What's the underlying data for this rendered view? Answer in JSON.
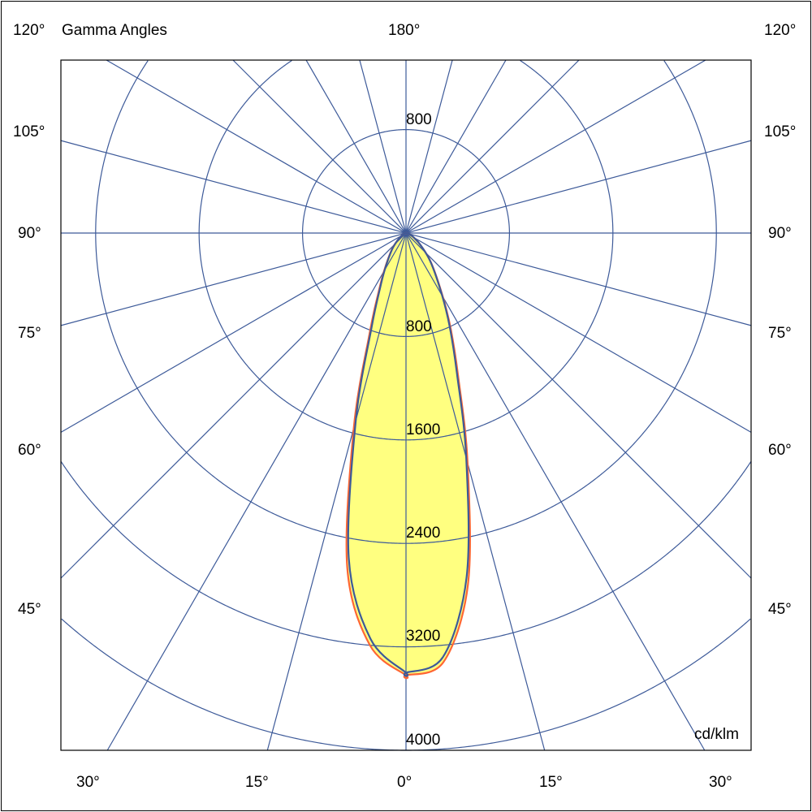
{
  "chart_data": {
    "type": "polar",
    "title": "Gamma Angles",
    "unit": "cd/klm",
    "top_label": "180°",
    "side_labels": [
      "120°",
      "105°",
      "90°",
      "75°",
      "60°",
      "45°"
    ],
    "bottom_labels": [
      "30°",
      "15°",
      "0°",
      "15°",
      "30°"
    ],
    "ring_values": [
      800,
      1600,
      2400,
      3200,
      4000
    ],
    "ring_labels": {
      "top": "800",
      "bottom": [
        "800",
        "1600",
        "2400",
        "3200",
        "4000"
      ]
    },
    "rmax": 4000,
    "radial_step_deg": 15,
    "grid": true,
    "gamma": [
      0,
      5,
      10,
      15,
      20,
      25,
      30,
      40,
      50,
      60,
      70,
      80,
      90
    ],
    "series": [
      {
        "color": "#ff6633",
        "right": [
          3420,
          3330,
          2760,
          1840,
          1180,
          820,
          570,
          305,
          150,
          70,
          30,
          10,
          0
        ],
        "left": [
          3420,
          3200,
          2620,
          1560,
          820,
          500,
          340,
          175,
          82,
          36,
          12,
          3,
          0
        ]
      },
      {
        "color": "#3d5a99",
        "right": [
          3400,
          3290,
          2700,
          1800,
          1150,
          800,
          560,
          300,
          150,
          70,
          30,
          10,
          0
        ],
        "left": [
          3400,
          3150,
          2550,
          1500,
          780,
          480,
          330,
          170,
          80,
          35,
          12,
          3,
          0
        ]
      }
    ],
    "fill_color": "#ffff80",
    "grid_color": "#3d5a99"
  }
}
